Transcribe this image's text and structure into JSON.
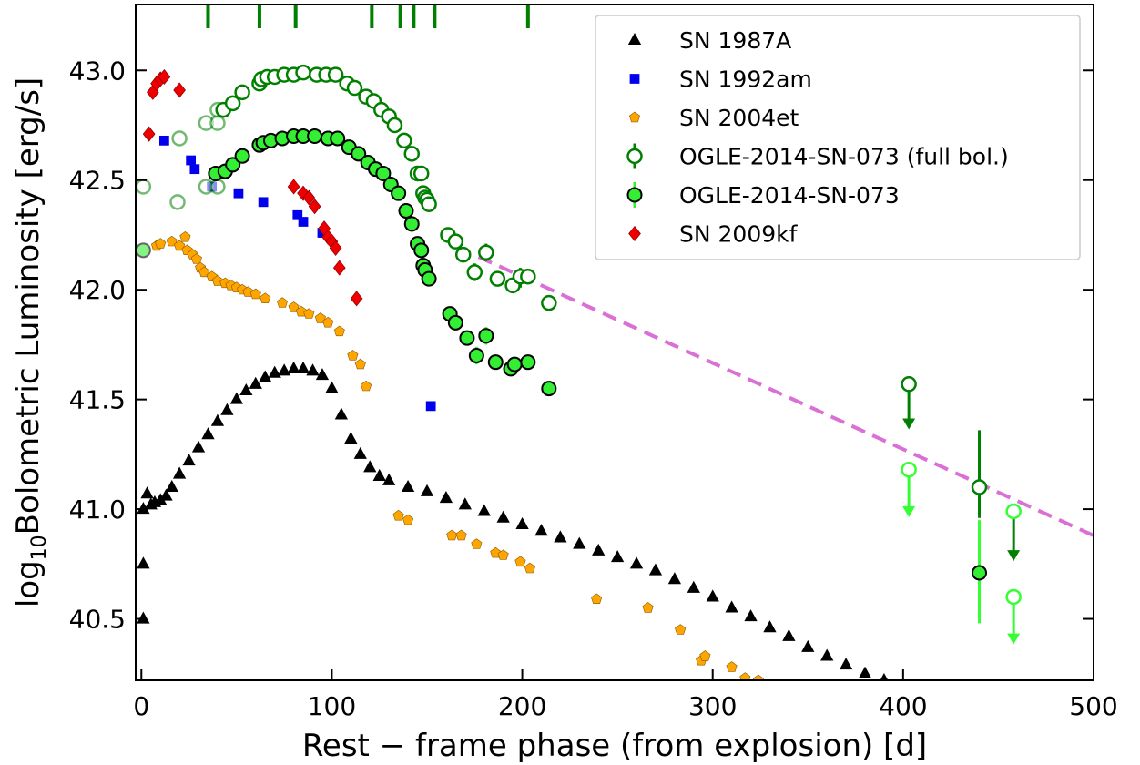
{
  "chart_data": {
    "type": "scatter",
    "title": "",
    "xlabel": "Rest − frame phase (from explosion) [d]",
    "ylabel_prefix": "log",
    "ylabel_sub": "10",
    "ylabel_rest": "Bolometric Luminosity [erg/s]",
    "xlim": [
      -3,
      500
    ],
    "ylim": [
      40.22,
      43.3
    ],
    "xticks": [
      0,
      100,
      200,
      300,
      400,
      500
    ],
    "xtick_labels": [
      "0",
      "100",
      "200",
      "300",
      "400",
      "500"
    ],
    "yticks": [
      40.5,
      41.0,
      41.5,
      42.0,
      42.5,
      43.0
    ],
    "ytick_labels": [
      "40.5",
      "41.0",
      "41.5",
      "42.0",
      "42.5",
      "43.0"
    ],
    "grid": false,
    "legend_position": "top-right",
    "colors": {
      "sn1987a": "#000000",
      "sn1992am": "#0000ee",
      "sn2004et": "#ffa500",
      "ogle_full": "#008000",
      "ogle": "#33ee33",
      "sn2009kf": "#ee0000",
      "fit": "#da70d6"
    },
    "epoch_markers": [
      35,
      62,
      81,
      121,
      136,
      143,
      154,
      203
    ],
    "series": [
      {
        "name": "SN 1987A",
        "marker": "triangle",
        "points": [
          [
            1,
            40.5
          ],
          [
            1,
            40.75
          ],
          [
            1,
            41.0
          ],
          [
            3,
            41.07
          ],
          [
            5,
            41.02
          ],
          [
            7,
            41.03
          ],
          [
            10,
            41.04
          ],
          [
            13,
            41.06
          ],
          [
            16,
            41.1
          ],
          [
            20,
            41.16
          ],
          [
            25,
            41.22
          ],
          [
            30,
            41.28
          ],
          [
            35,
            41.34
          ],
          [
            40,
            41.4
          ],
          [
            45,
            41.45
          ],
          [
            50,
            41.5
          ],
          [
            55,
            41.54
          ],
          [
            60,
            41.57
          ],
          [
            65,
            41.6
          ],
          [
            70,
            41.62
          ],
          [
            75,
            41.63
          ],
          [
            80,
            41.64
          ],
          [
            85,
            41.64
          ],
          [
            90,
            41.63
          ],
          [
            95,
            41.61
          ],
          [
            100,
            41.55
          ],
          [
            105,
            41.43
          ],
          [
            110,
            41.32
          ],
          [
            115,
            41.25
          ],
          [
            120,
            41.19
          ],
          [
            125,
            41.15
          ],
          [
            130,
            41.13
          ],
          [
            140,
            41.1
          ],
          [
            150,
            41.08
          ],
          [
            160,
            41.05
          ],
          [
            170,
            41.02
          ],
          [
            180,
            40.99
          ],
          [
            190,
            40.96
          ],
          [
            200,
            40.93
          ],
          [
            210,
            40.9
          ],
          [
            220,
            40.87
          ],
          [
            230,
            40.84
          ],
          [
            240,
            40.81
          ],
          [
            250,
            40.78
          ],
          [
            260,
            40.75
          ],
          [
            270,
            40.72
          ],
          [
            280,
            40.68
          ],
          [
            290,
            40.64
          ],
          [
            300,
            40.6
          ],
          [
            310,
            40.55
          ],
          [
            320,
            40.51
          ],
          [
            330,
            40.46
          ],
          [
            340,
            40.42
          ],
          [
            350,
            40.37
          ],
          [
            360,
            40.33
          ],
          [
            370,
            40.29
          ],
          [
            380,
            40.25
          ],
          [
            390,
            40.22
          ]
        ]
      },
      {
        "name": "SN 1992am",
        "marker": "square",
        "points": [
          [
            12,
            42.68
          ],
          [
            26,
            42.59
          ],
          [
            28,
            42.55
          ],
          [
            37,
            42.47
          ],
          [
            51,
            42.44
          ],
          [
            64,
            42.4
          ],
          [
            82,
            42.34
          ],
          [
            85,
            42.31
          ],
          [
            95,
            42.26
          ],
          [
            152,
            41.47
          ]
        ]
      },
      {
        "name": "SN 2004et",
        "marker": "pentagon",
        "points": [
          [
            8,
            42.2
          ],
          [
            10,
            42.21
          ],
          [
            16,
            42.22
          ],
          [
            20,
            42.2
          ],
          [
            23,
            42.24
          ],
          [
            24,
            42.18
          ],
          [
            27,
            42.16
          ],
          [
            29,
            42.14
          ],
          [
            31,
            42.1
          ],
          [
            33,
            42.08
          ],
          [
            37,
            42.06
          ],
          [
            40,
            42.04
          ],
          [
            44,
            42.03
          ],
          [
            47,
            42.02
          ],
          [
            50,
            42.01
          ],
          [
            53,
            42.0
          ],
          [
            56,
            41.99
          ],
          [
            60,
            41.98
          ],
          [
            65,
            41.96
          ],
          [
            74,
            41.94
          ],
          [
            80,
            41.92
          ],
          [
            84,
            41.9
          ],
          [
            88,
            41.89
          ],
          [
            94,
            41.87
          ],
          [
            98,
            41.85
          ],
          [
            104,
            41.81
          ],
          [
            111,
            41.7
          ],
          [
            115,
            41.66
          ],
          [
            118,
            41.56
          ],
          [
            135,
            40.97
          ],
          [
            140,
            40.95
          ],
          [
            163,
            40.88
          ],
          [
            168,
            40.88
          ],
          [
            176,
            40.84
          ],
          [
            186,
            40.8
          ],
          [
            190,
            40.79
          ],
          [
            199,
            40.76
          ],
          [
            204,
            40.73
          ],
          [
            239,
            40.59
          ],
          [
            266,
            40.55
          ],
          [
            283,
            40.45
          ],
          [
            294,
            40.31
          ],
          [
            296,
            40.33
          ],
          [
            310,
            40.28
          ],
          [
            317,
            40.23
          ],
          [
            324,
            40.22
          ]
        ]
      },
      {
        "name": "OGLE-2014-SN-073 (full bol.)",
        "marker": "circle-open",
        "points": [
          [
            1,
            42.47
          ],
          [
            19,
            42.4
          ],
          [
            20,
            42.69
          ],
          [
            34,
            42.47
          ],
          [
            34,
            42.76
          ],
          [
            40,
            42.47
          ],
          [
            40,
            42.76
          ],
          [
            40,
            42.82
          ],
          [
            43,
            42.82
          ],
          [
            48,
            42.85
          ],
          [
            53,
            42.9
          ],
          [
            62,
            42.94
          ],
          [
            63,
            42.96
          ],
          [
            66,
            42.97
          ],
          [
            70,
            42.97
          ],
          [
            75,
            42.98
          ],
          [
            80,
            42.98
          ],
          [
            85,
            42.99
          ],
          [
            92,
            42.98
          ],
          [
            97,
            42.98
          ],
          [
            102,
            42.98
          ],
          [
            108,
            42.94
          ],
          [
            112,
            42.92
          ],
          [
            118,
            42.88
          ],
          [
            122,
            42.86
          ],
          [
            126,
            42.82
          ],
          [
            130,
            42.79
          ],
          [
            133,
            42.75
          ],
          [
            138,
            42.68
          ],
          [
            142,
            42.62
          ],
          [
            145,
            42.53
          ],
          [
            147,
            42.53
          ],
          [
            148,
            42.44
          ],
          [
            149,
            42.42
          ],
          [
            150,
            42.41
          ],
          [
            151,
            42.39
          ],
          [
            161,
            42.25
          ],
          [
            165,
            42.22
          ],
          [
            169,
            42.16
          ],
          [
            175,
            42.08
          ],
          [
            181,
            42.17
          ],
          [
            187,
            42.05
          ],
          [
            195,
            42.02
          ],
          [
            199,
            42.06
          ],
          [
            203,
            42.06
          ],
          [
            214,
            41.94
          ],
          [
            403,
            41.57
          ],
          [
            403,
            41.18
          ],
          [
            440,
            41.1
          ],
          [
            458,
            40.99
          ],
          [
            458,
            40.6
          ]
        ],
        "upper_limits_x": [
          403,
          458
        ]
      },
      {
        "name": "OGLE-2014-SN-073",
        "marker": "circle-filled",
        "points": [
          [
            1,
            42.18
          ],
          [
            39,
            42.53
          ],
          [
            44,
            42.54
          ],
          [
            48,
            42.57
          ],
          [
            53,
            42.61
          ],
          [
            62,
            42.66
          ],
          [
            64,
            42.67
          ],
          [
            68,
            42.68
          ],
          [
            74,
            42.69
          ],
          [
            80,
            42.7
          ],
          [
            85,
            42.7
          ],
          [
            91,
            42.7
          ],
          [
            98,
            42.69
          ],
          [
            103,
            42.69
          ],
          [
            109,
            42.65
          ],
          [
            114,
            42.62
          ],
          [
            119,
            42.58
          ],
          [
            123,
            42.55
          ],
          [
            127,
            42.53
          ],
          [
            131,
            42.48
          ],
          [
            135,
            42.44
          ],
          [
            139,
            42.36
          ],
          [
            142,
            42.3
          ],
          [
            145,
            42.21
          ],
          [
            147,
            42.18
          ],
          [
            148,
            42.11
          ],
          [
            149,
            42.09
          ],
          [
            151,
            42.05
          ],
          [
            162,
            41.89
          ],
          [
            165,
            41.85
          ],
          [
            171,
            41.78
          ],
          [
            176,
            41.7
          ],
          [
            181,
            41.79
          ],
          [
            186,
            41.67
          ],
          [
            194,
            41.64
          ],
          [
            196,
            41.66
          ],
          [
            203,
            41.67
          ],
          [
            214,
            41.55
          ],
          [
            440,
            40.71
          ]
        ],
        "upper_limits_x": [
          403,
          458
        ]
      },
      {
        "name": "SN 2009kf",
        "marker": "diamond",
        "points": [
          [
            4,
            42.71
          ],
          [
            6,
            42.9
          ],
          [
            8,
            42.94
          ],
          [
            10,
            42.96
          ],
          [
            12,
            42.97
          ],
          [
            20,
            42.91
          ],
          [
            80,
            42.47
          ],
          [
            85,
            42.44
          ],
          [
            88,
            42.42
          ],
          [
            91,
            42.38
          ],
          [
            96,
            42.28
          ],
          [
            98,
            42.24
          ],
          [
            100,
            42.22
          ],
          [
            102,
            42.19
          ],
          [
            104,
            42.1
          ],
          [
            113,
            41.96
          ]
        ]
      },
      {
        "marker": "fit-line",
        "points": [
          [
            177,
            42.15
          ],
          [
            500,
            40.88
          ]
        ]
      }
    ]
  }
}
